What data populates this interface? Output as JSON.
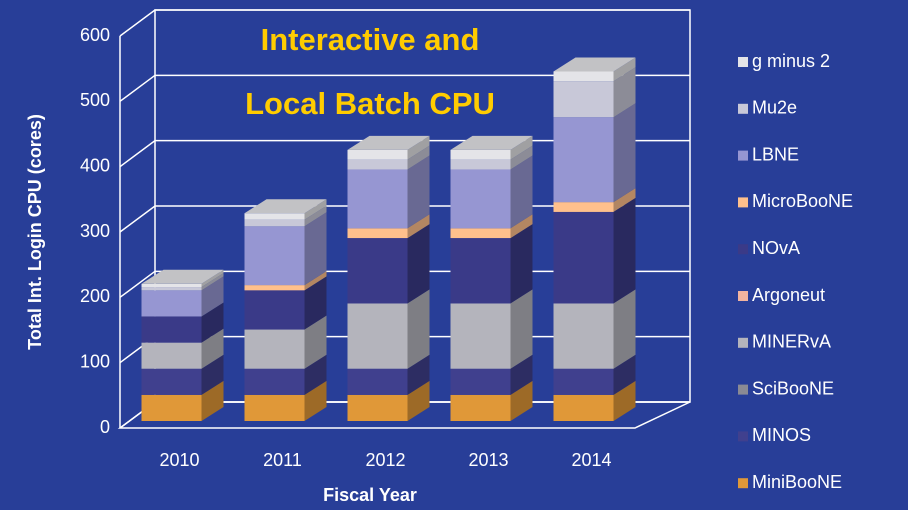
{
  "chart_data": {
    "type": "bar3d_stacked",
    "title_lines": [
      "Interactive and",
      "Local Batch CPU"
    ],
    "x_label": "Fiscal Year",
    "y_label": "Total Int. Login CPU (cores)",
    "categories": [
      "2010",
      "2011",
      "2012",
      "2013",
      "2014"
    ],
    "series": [
      {
        "name": "MiniBooNE",
        "color": "#e09838",
        "values": [
          40,
          40,
          40,
          40,
          40
        ]
      },
      {
        "name": "MINOS",
        "color": "#40408e",
        "values": [
          40,
          40,
          40,
          40,
          40
        ]
      },
      {
        "name": "SciBooNE",
        "color": "#8a8a94",
        "values": [
          0,
          0,
          0,
          0,
          0
        ]
      },
      {
        "name": "MINERvA",
        "color": "#b4b4bc",
        "values": [
          40,
          60,
          100,
          100,
          100
        ]
      },
      {
        "name": "Argoneut",
        "color": "#f2b4a0",
        "values": [
          0,
          0,
          0,
          0,
          0
        ]
      },
      {
        "name": "NOvA",
        "color": "#3a3a88",
        "values": [
          40,
          60,
          100,
          100,
          140
        ]
      },
      {
        "name": "MicroBooNE",
        "color": "#ffc08c",
        "values": [
          0,
          8,
          15,
          15,
          15
        ]
      },
      {
        "name": "LBNE",
        "color": "#9696d2",
        "values": [
          40,
          90,
          90,
          90,
          130
        ]
      },
      {
        "name": "Mu2e",
        "color": "#c8c8d8",
        "values": [
          5,
          10,
          15,
          15,
          55
        ]
      },
      {
        "name": "g minus 2",
        "color": "#e4e4e8",
        "values": [
          5,
          10,
          15,
          15,
          15
        ]
      }
    ],
    "ylim": [
      0,
      600
    ],
    "yticks": [
      0,
      100,
      200,
      300,
      400,
      500,
      600
    ],
    "grid": true,
    "legend": "right"
  }
}
